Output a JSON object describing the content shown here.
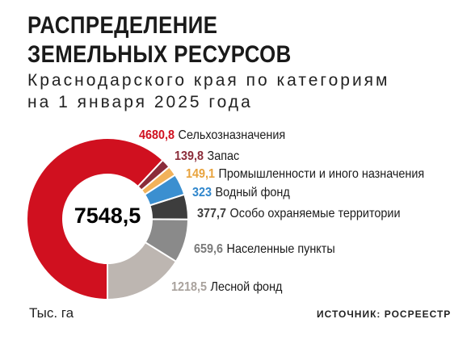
{
  "title_line1": "РАСПРЕДЕЛЕНИЕ",
  "title_line2": "ЗЕМЕЛЬНЫХ РЕСУРСОВ",
  "subtitle_line1": "Краснодарского края по категориям",
  "subtitle_line2": "на 1 января 2025 года",
  "unit": "Тыс. га",
  "source": "ИСТОЧНИК: РОСРЕЕСТР",
  "chart_data": {
    "type": "pie",
    "donut": true,
    "total": "7548,5",
    "slices": [
      {
        "label": "Сельхозназначения",
        "value": 4680.8,
        "display": "4680,8",
        "color": "#d0101f",
        "label_color": "#d0101f"
      },
      {
        "label": "Запас",
        "value": 139.8,
        "display": "139,8",
        "color": "#8b2d3a",
        "label_color": "#8b2d3a"
      },
      {
        "label": "Промышленности и иного назначения",
        "value": 149.1,
        "display": "149,1",
        "color": "#f2b25a",
        "label_color": "#e8a33d"
      },
      {
        "label": "Водный фонд",
        "value": 323,
        "display": "323",
        "color": "#3b8fd0",
        "label_color": "#2f86cc"
      },
      {
        "label": "Особо охраняемые территории",
        "value": 377.7,
        "display": "377,7",
        "color": "#3d3d3d",
        "label_color": "#3d3d3d"
      },
      {
        "label": "Населенные пункты",
        "value": 659.6,
        "display": "659,6",
        "color": "#8a8a8a",
        "label_color": "#7a7a7a"
      },
      {
        "label": "Лесной фонд",
        "value": 1218.5,
        "display": "1218,5",
        "color": "#bdb6b1",
        "label_color": "#a9a29d"
      }
    ]
  }
}
